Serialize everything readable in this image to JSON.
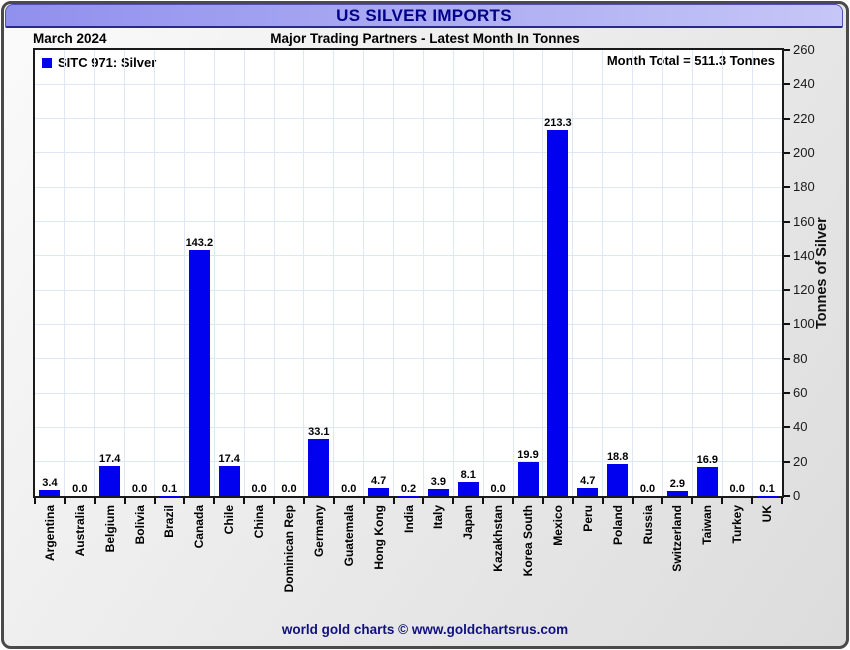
{
  "header": {
    "title": "US SILVER IMPORTS"
  },
  "subheader": {
    "period": "March 2024",
    "title": "Major Trading Partners - Latest Month In Tonnes"
  },
  "legend": {
    "label": "SITC 971: Silver"
  },
  "annotations": {
    "month_total": "Month Total = 511.3 Tonnes"
  },
  "footer": {
    "credit": "world gold charts © www.goldchartsrus.com"
  },
  "colors": {
    "bar": "#0101f0",
    "header_text": "#00008b",
    "header_bar_left": "#9090ee",
    "header_bar_right": "#c6c6f7",
    "gridline": "#dde8f5",
    "footer_text": "#10107e",
    "plot_background": "#ffffff"
  },
  "chart_data": {
    "type": "bar",
    "title": "US SILVER IMPORTS",
    "subtitle": "Major Trading Partners - Latest Month In Tonnes",
    "period": "March 2024",
    "series_name": "SITC 971: Silver",
    "categories": [
      "Argentina",
      "Australia",
      "Belgium",
      "Bolivia",
      "Brazil",
      "Canada",
      "Chile",
      "China",
      "Dominican Rep",
      "Germany",
      "Guatemala",
      "Hong Kong",
      "India",
      "Italy",
      "Japan",
      "Kazakhstan",
      "Korea South",
      "Mexico",
      "Peru",
      "Poland",
      "Russia",
      "Switzerland",
      "Taiwan",
      "Turkey",
      "UK"
    ],
    "values": [
      3.4,
      0.0,
      17.4,
      0.0,
      0.1,
      143.2,
      17.4,
      0.0,
      0.0,
      33.1,
      0.0,
      4.7,
      0.2,
      3.9,
      8.1,
      0.0,
      19.9,
      213.3,
      4.7,
      18.8,
      0.0,
      2.9,
      16.9,
      0.0,
      0.1
    ],
    "value_labels_shown": true,
    "month_total": 511.3,
    "ylabel": "Tonnes of Silver",
    "ylim": [
      0,
      260
    ],
    "yticks": [
      0,
      20,
      40,
      60,
      80,
      100,
      120,
      140,
      160,
      180,
      200,
      220,
      240,
      260
    ],
    "grid": true,
    "legend_position": "top-left",
    "y_axis_side": "right"
  }
}
